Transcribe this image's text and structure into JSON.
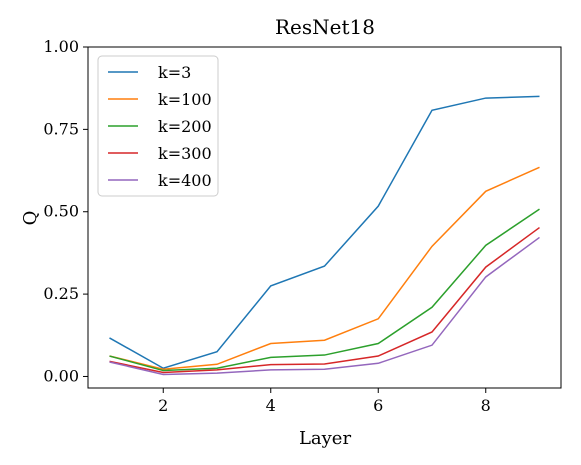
{
  "chart_data": {
    "type": "line",
    "title": "ResNet18",
    "xlabel": "Layer",
    "ylabel": "Q",
    "xlim": [
      0.6,
      9.4
    ],
    "ylim": [
      -0.035,
      1.0
    ],
    "xticks": [
      2,
      4,
      6,
      8
    ],
    "yticks": [
      0.0,
      0.25,
      0.5,
      0.75,
      1.0
    ],
    "xtick_labels": [
      "2",
      "4",
      "6",
      "8"
    ],
    "ytick_labels": [
      "0.00",
      "0.25",
      "0.50",
      "0.75",
      "1.00"
    ],
    "grid": false,
    "legend_position": "top-left",
    "x": [
      1,
      2,
      3,
      4,
      5,
      6,
      7,
      8,
      9
    ],
    "series": [
      {
        "name": "k=3",
        "color": "#1f77b4",
        "values": [
          0.117,
          0.025,
          0.075,
          0.275,
          0.335,
          0.517,
          0.808,
          0.845,
          0.85
        ]
      },
      {
        "name": "k=100",
        "color": "#ff7f0e",
        "values": [
          0.062,
          0.022,
          0.037,
          0.1,
          0.11,
          0.175,
          0.395,
          0.562,
          0.635
        ]
      },
      {
        "name": "k=200",
        "color": "#2ca02c",
        "values": [
          0.062,
          0.018,
          0.025,
          0.058,
          0.065,
          0.1,
          0.21,
          0.398,
          0.508
        ]
      },
      {
        "name": "k=300",
        "color": "#d62728",
        "values": [
          0.046,
          0.012,
          0.02,
          0.036,
          0.038,
          0.062,
          0.135,
          0.332,
          0.452
        ]
      },
      {
        "name": "k=400",
        "color": "#9467bd",
        "values": [
          0.044,
          0.006,
          0.01,
          0.02,
          0.022,
          0.04,
          0.095,
          0.302,
          0.422
        ]
      }
    ]
  }
}
